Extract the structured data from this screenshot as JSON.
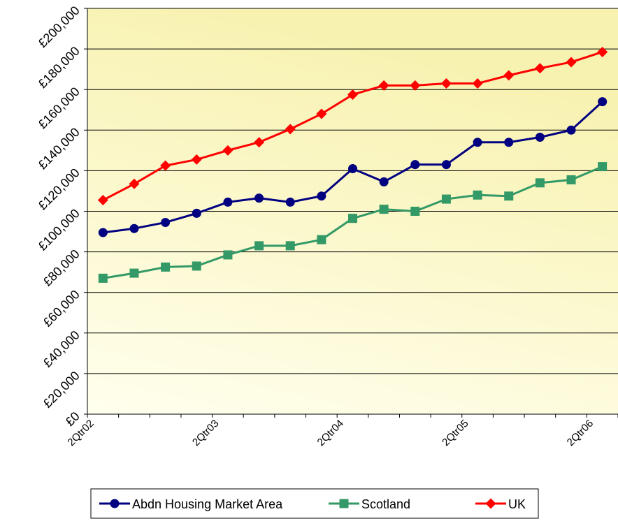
{
  "chart_data": {
    "type": "line",
    "categories": [
      "2Qtr02",
      null,
      null,
      null,
      "2Qtr03",
      null,
      null,
      null,
      "2Qtr04",
      null,
      null,
      null,
      "2Qtr05",
      null,
      null,
      null,
      "2Qtr06"
    ],
    "series": [
      {
        "name": "Abdn Housing Market Area",
        "color": "#000080",
        "marker": "circle",
        "values": [
          89500,
          91500,
          94500,
          99000,
          104500,
          106500,
          104500,
          107500,
          121000,
          114500,
          123000,
          123000,
          134000,
          134000,
          136500,
          140000,
          154000
        ]
      },
      {
        "name": "Scotland",
        "color": "#339966",
        "marker": "square",
        "values": [
          67000,
          69500,
          72500,
          73000,
          78500,
          83000,
          83000,
          86000,
          96500,
          101000,
          100000,
          106000,
          108000,
          107500,
          114000,
          115500,
          122000
        ]
      },
      {
        "name": "UK",
        "color": "#ff0000",
        "marker": "diamond",
        "values": [
          105500,
          113500,
          122500,
          125500,
          130000,
          134000,
          140500,
          148000,
          157500,
          162000,
          162000,
          163000,
          163000,
          167000,
          170500,
          173500,
          178500
        ]
      }
    ],
    "ylim": [
      0,
      200000
    ],
    "yticks": [
      {
        "value": 0,
        "label": "£0"
      },
      {
        "value": 20000,
        "label": "£20,000"
      },
      {
        "value": 40000,
        "label": "£40,000"
      },
      {
        "value": 60000,
        "label": "£60,000"
      },
      {
        "value": 80000,
        "label": "£80,000"
      },
      {
        "value": 100000,
        "label": "£100,000"
      },
      {
        "value": 120000,
        "label": "£120,000"
      },
      {
        "value": 140000,
        "label": "£140,000"
      },
      {
        "value": 160000,
        "label": "£160,000"
      },
      {
        "value": 180000,
        "label": "£180,000"
      },
      {
        "value": 200000,
        "label": "£200,000"
      }
    ],
    "grid": true
  }
}
